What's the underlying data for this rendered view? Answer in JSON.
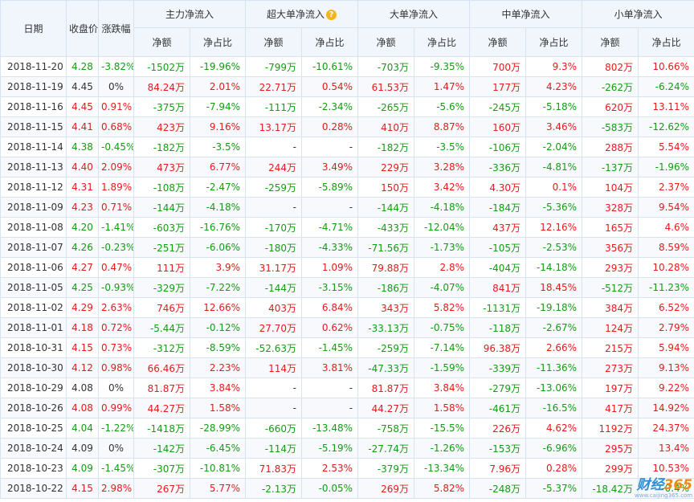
{
  "headers": {
    "date": "日期",
    "close": "收盘价",
    "change": "涨跌幅",
    "main": "主力净流入",
    "super": "超大单净流入",
    "big": "大单净流入",
    "mid": "中单净流入",
    "small": "小单净流入",
    "amount": "净额",
    "ratio": "净占比"
  },
  "help_icon_glyph": "?",
  "colors": {
    "up": "#e31b1b",
    "down": "#149c14",
    "header_bg": "#f1f6fc",
    "border": "#d7e3f1"
  },
  "rows": [
    [
      "2018-11-20",
      "4.28",
      "-3.82%",
      "-1502万",
      "-19.96%",
      "-799万",
      "-10.61%",
      "-703万",
      "-9.35%",
      "700万",
      "9.3%",
      "802万",
      "10.66%"
    ],
    [
      "2018-11-19",
      "4.45",
      "0%",
      "84.24万",
      "2.01%",
      "22.71万",
      "0.54%",
      "61.53万",
      "1.47%",
      "177万",
      "4.23%",
      "-262万",
      "-6.24%"
    ],
    [
      "2018-11-16",
      "4.45",
      "0.91%",
      "-375万",
      "-7.94%",
      "-111万",
      "-2.34%",
      "-265万",
      "-5.6%",
      "-245万",
      "-5.18%",
      "620万",
      "13.11%"
    ],
    [
      "2018-11-15",
      "4.41",
      "0.68%",
      "423万",
      "9.16%",
      "13.17万",
      "0.28%",
      "410万",
      "8.87%",
      "160万",
      "3.46%",
      "-583万",
      "-12.62%"
    ],
    [
      "2018-11-14",
      "4.38",
      "-0.45%",
      "-182万",
      "-3.5%",
      "-",
      "-",
      "-182万",
      "-3.5%",
      "-106万",
      "-2.04%",
      "288万",
      "5.54%"
    ],
    [
      "2018-11-13",
      "4.40",
      "2.09%",
      "473万",
      "6.77%",
      "244万",
      "3.49%",
      "229万",
      "3.28%",
      "-336万",
      "-4.81%",
      "-137万",
      "-1.96%"
    ],
    [
      "2018-11-12",
      "4.31",
      "1.89%",
      "-108万",
      "-2.47%",
      "-259万",
      "-5.89%",
      "150万",
      "3.42%",
      "4.30万",
      "0.1%",
      "104万",
      "2.37%"
    ],
    [
      "2018-11-09",
      "4.23",
      "0.71%",
      "-144万",
      "-4.18%",
      "-",
      "-",
      "-144万",
      "-4.18%",
      "-184万",
      "-5.36%",
      "328万",
      "9.54%"
    ],
    [
      "2018-11-08",
      "4.20",
      "-1.41%",
      "-603万",
      "-16.76%",
      "-170万",
      "-4.71%",
      "-433万",
      "-12.04%",
      "437万",
      "12.16%",
      "165万",
      "4.6%"
    ],
    [
      "2018-11-07",
      "4.26",
      "-0.23%",
      "-251万",
      "-6.06%",
      "-180万",
      "-4.33%",
      "-71.56万",
      "-1.73%",
      "-105万",
      "-2.53%",
      "356万",
      "8.59%"
    ],
    [
      "2018-11-06",
      "4.27",
      "0.47%",
      "111万",
      "3.9%",
      "31.17万",
      "1.09%",
      "79.88万",
      "2.8%",
      "-404万",
      "-14.18%",
      "293万",
      "10.28%"
    ],
    [
      "2018-11-05",
      "4.25",
      "-0.93%",
      "-329万",
      "-7.22%",
      "-144万",
      "-3.15%",
      "-186万",
      "-4.07%",
      "841万",
      "18.45%",
      "-512万",
      "-11.23%"
    ],
    [
      "2018-11-02",
      "4.29",
      "2.63%",
      "746万",
      "12.66%",
      "403万",
      "6.84%",
      "343万",
      "5.82%",
      "-1131万",
      "-19.18%",
      "384万",
      "6.52%"
    ],
    [
      "2018-11-01",
      "4.18",
      "0.72%",
      "-5.44万",
      "-0.12%",
      "27.70万",
      "0.62%",
      "-33.13万",
      "-0.75%",
      "-118万",
      "-2.67%",
      "124万",
      "2.79%"
    ],
    [
      "2018-10-31",
      "4.15",
      "0.73%",
      "-312万",
      "-8.59%",
      "-52.63万",
      "-1.45%",
      "-259万",
      "-7.14%",
      "96.38万",
      "2.66%",
      "215万",
      "5.94%"
    ],
    [
      "2018-10-30",
      "4.12",
      "0.98%",
      "66.46万",
      "2.23%",
      "114万",
      "3.81%",
      "-47.33万",
      "-1.59%",
      "-339万",
      "-11.36%",
      "273万",
      "9.13%"
    ],
    [
      "2018-10-29",
      "4.08",
      "0%",
      "81.87万",
      "3.84%",
      "-",
      "-",
      "81.87万",
      "3.84%",
      "-279万",
      "-13.06%",
      "197万",
      "9.22%"
    ],
    [
      "2018-10-26",
      "4.08",
      "0.99%",
      "44.27万",
      "1.58%",
      "-",
      "-",
      "44.27万",
      "1.58%",
      "-461万",
      "-16.5%",
      "417万",
      "14.92%"
    ],
    [
      "2018-10-25",
      "4.04",
      "-1.22%",
      "-1418万",
      "-28.99%",
      "-660万",
      "-13.48%",
      "-758万",
      "-15.5%",
      "226万",
      "4.62%",
      "1192万",
      "24.37%"
    ],
    [
      "2018-10-24",
      "4.09",
      "0%",
      "-142万",
      "-6.45%",
      "-114万",
      "-5.19%",
      "-27.74万",
      "-1.26%",
      "-153万",
      "-6.96%",
      "295万",
      "13.4%"
    ],
    [
      "2018-10-23",
      "4.09",
      "-1.45%",
      "-307万",
      "-10.81%",
      "71.83万",
      "2.53%",
      "-379万",
      "-13.34%",
      "7.96万",
      "0.28%",
      "299万",
      "10.53%"
    ],
    [
      "2018-10-22",
      "4.15",
      "2.98%",
      "267万",
      "5.77%",
      "-2.13万",
      "-0.05%",
      "269万",
      "5.82%",
      "-248万",
      "-5.37%",
      "-18.42万",
      "-0.4%"
    ]
  ],
  "watermark": {
    "logo_text": "财经",
    "logo_num": "365",
    "url": "www.caijing365.com"
  }
}
